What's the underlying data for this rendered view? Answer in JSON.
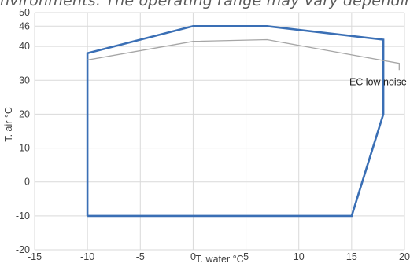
{
  "page": {
    "top_text": "nvironments. The operating range may vary depending"
  },
  "chart_data": {
    "type": "line",
    "title": "",
    "xlabel": "T. water °C",
    "ylabel": "T. air °C",
    "xlim": [
      -15,
      20
    ],
    "ylim": [
      -20,
      50
    ],
    "x_ticks": [
      -15,
      -10,
      -5,
      0,
      5,
      10,
      15,
      20
    ],
    "y_ticks": [
      -20,
      -10,
      0,
      10,
      20,
      30,
      40,
      46,
      50
    ],
    "grid": true,
    "series": [
      {
        "color": "#3a6fb5",
        "points": [
          [
            -10,
            -10
          ],
          [
            -10,
            38
          ],
          [
            0,
            46
          ],
          [
            7,
            46
          ],
          [
            18,
            42
          ],
          [
            18,
            20
          ],
          [
            15,
            -10
          ],
          [
            -10,
            -10
          ]
        ]
      },
      {
        "name": "EC low noise",
        "color": "#a6a6a6",
        "points": [
          [
            -10,
            36
          ],
          [
            0,
            41.5
          ],
          [
            7,
            42
          ],
          [
            19.5,
            35
          ],
          [
            19.5,
            33
          ]
        ]
      }
    ],
    "annotations": [
      {
        "text": "EC low noise",
        "x": 17.5,
        "y": 29.5
      }
    ]
  }
}
